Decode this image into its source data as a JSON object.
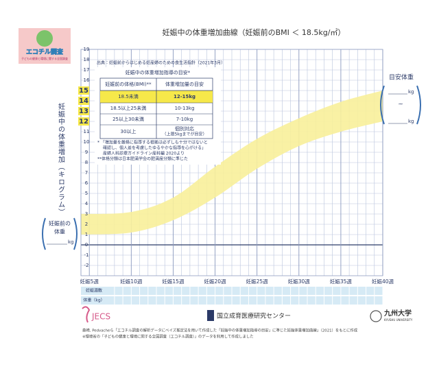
{
  "logo": {
    "name": "エコチル調査",
    "tagline": "子どもの健康と環境に関する全国調査"
  },
  "chart_data": {
    "type": "band",
    "title": "妊娠中の体重増加曲線（妊娠前のBMI ＜ 18.5kg/㎡）",
    "source_note": "出典：妊娠前からはじめる妊産婦のための食生活指針（2021年3月）",
    "y_label": "妊娠中の体重増加（キログラム）",
    "x": [
      4,
      10,
      15,
      20,
      25,
      30,
      35,
      40
    ],
    "lower": [
      1,
      1.2,
      2.4,
      4.6,
      7.4,
      9.6,
      11,
      12
    ],
    "upper": [
      3,
      3.2,
      4.6,
      7.6,
      10.3,
      12.3,
      13.9,
      15
    ],
    "color": "#f8f09a",
    "xlim": [
      4,
      40
    ],
    "xticks": [
      {
        "value": 5,
        "label": "妊娠5週"
      },
      {
        "value": 10,
        "label": "妊娠10週"
      },
      {
        "value": 15,
        "label": "妊娠15週"
      },
      {
        "value": 20,
        "label": "妊娠20週"
      },
      {
        "value": 25,
        "label": "妊娠25週"
      },
      {
        "value": 30,
        "label": "妊娠30週"
      },
      {
        "value": 35,
        "label": "妊娠35週"
      },
      {
        "value": 40,
        "label": "妊娠40週"
      }
    ],
    "ylim": [
      -3,
      19
    ],
    "yticks": [
      19,
      18,
      17,
      16,
      15,
      14,
      13,
      12,
      11,
      10,
      9,
      8,
      7,
      6,
      5,
      4,
      3,
      2,
      1,
      0,
      -1,
      -2
    ],
    "highlight_range": [
      12,
      15
    ],
    "grid": true
  },
  "guideline_table": {
    "title": "妊娠中の体重増加指導の目安*",
    "headers": [
      "妊娠前の体格(BMI)**",
      "体重増加量の目安"
    ],
    "rows": [
      [
        "18.5未満",
        "12-15kg"
      ],
      [
        "18.5以上25未満",
        "10-13kg"
      ],
      [
        "25以上30未満",
        "7-10kg"
      ],
      [
        "30以上",
        [
          "個別対応",
          "（上限5kgまでが目安）"
        ]
      ]
    ],
    "notes": [
      "* 「増加量を厳格に指導する根拠は必ずしも十分ではないと",
      "確認し、個人差を考慮したゆるやかな指導を心がける」",
      "産婦人科診療ガイドライン産科編 2020より",
      "**体格分類は日本肥満学会の肥満度分類に準じた"
    ]
  },
  "left_box": {
    "lines": [
      "妊娠前の",
      "体重"
    ],
    "unit": "kg"
  },
  "right_box": {
    "title": "目安体重",
    "unit_top": "kg",
    "tilde": "~",
    "unit_bottom": "kg"
  },
  "record_table": {
    "rows": [
      "妊娠週数",
      "体重（kg）"
    ]
  },
  "footer": {
    "logos": [
      "JECS",
      "国立成育医療研究センター",
      "九州大学",
      "KYUSHU UNIVERSITY"
    ],
    "lines": [
      "森崎, Pedvacheら「エコチル調査の解析データにベイズ推定法を用いて作成した「妊娠中の体重増加指導の目安」に準じた妊娠体重増加曲線」（2021）をもとに作成",
      "※環境省の「子どもの健康と環境に関する全国調査（エコチル調査）」のデータを利用して作成しました"
    ]
  }
}
